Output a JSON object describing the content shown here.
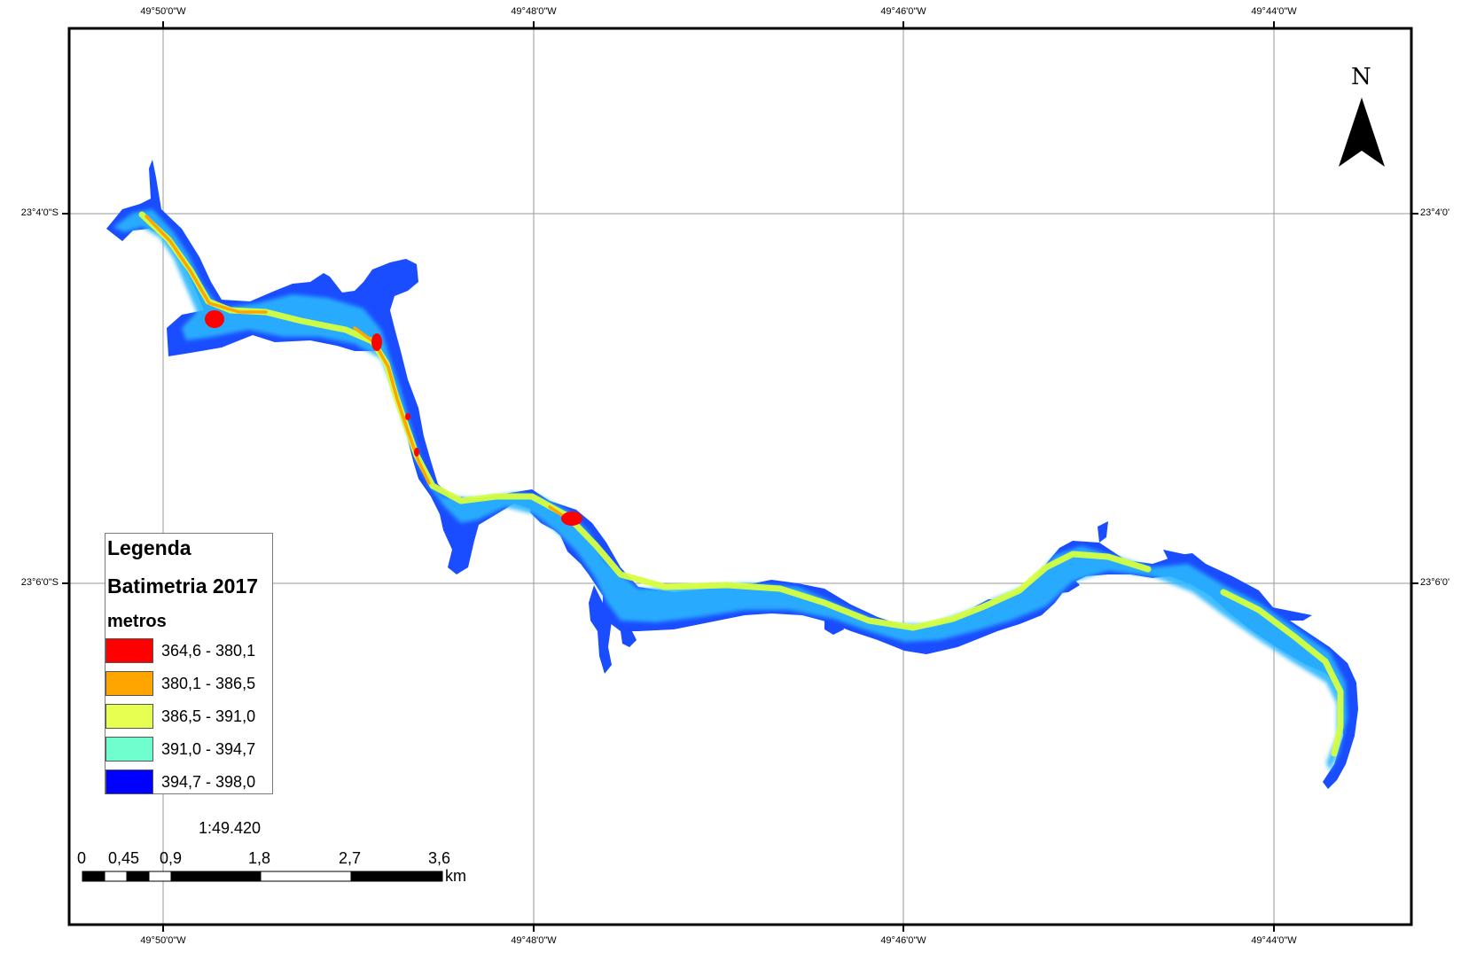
{
  "map": {
    "north_label": "N",
    "top_longitudes": [
      "49°50'0\"W",
      "49°48'0\"W",
      "49°46'0\"W",
      "49°44'0\"W"
    ],
    "bottom_longitudes": [
      "49°50'0\"W",
      "49°48'0\"W",
      "49°46'0\"W",
      "49°44'0\"W"
    ],
    "left_latitudes": [
      "23°4'0\"S",
      "23°6'0\"S"
    ],
    "right_latitudes": [
      "23°4'0'",
      "23°6'0'"
    ]
  },
  "legend": {
    "title": "Legenda",
    "layer": "Batimetria 2017",
    "unit": "metros",
    "items": [
      {
        "label": "364,6 - 380,1",
        "color": "#ff0000"
      },
      {
        "label": "380,1 - 386,5",
        "color": "#ffa500"
      },
      {
        "label": "386,5 - 391,0",
        "color": "#e6ff50"
      },
      {
        "label": "391,0 - 394,7",
        "color": "#6fffcf"
      },
      {
        "label": "394,7 - 398,0",
        "color": "#0000ff"
      }
    ]
  },
  "scale": {
    "ratio": "1:49.420",
    "ticks": [
      "0",
      "0,45",
      "0,9",
      "1,8",
      "2,7",
      "3,6"
    ],
    "unit": "km"
  }
}
